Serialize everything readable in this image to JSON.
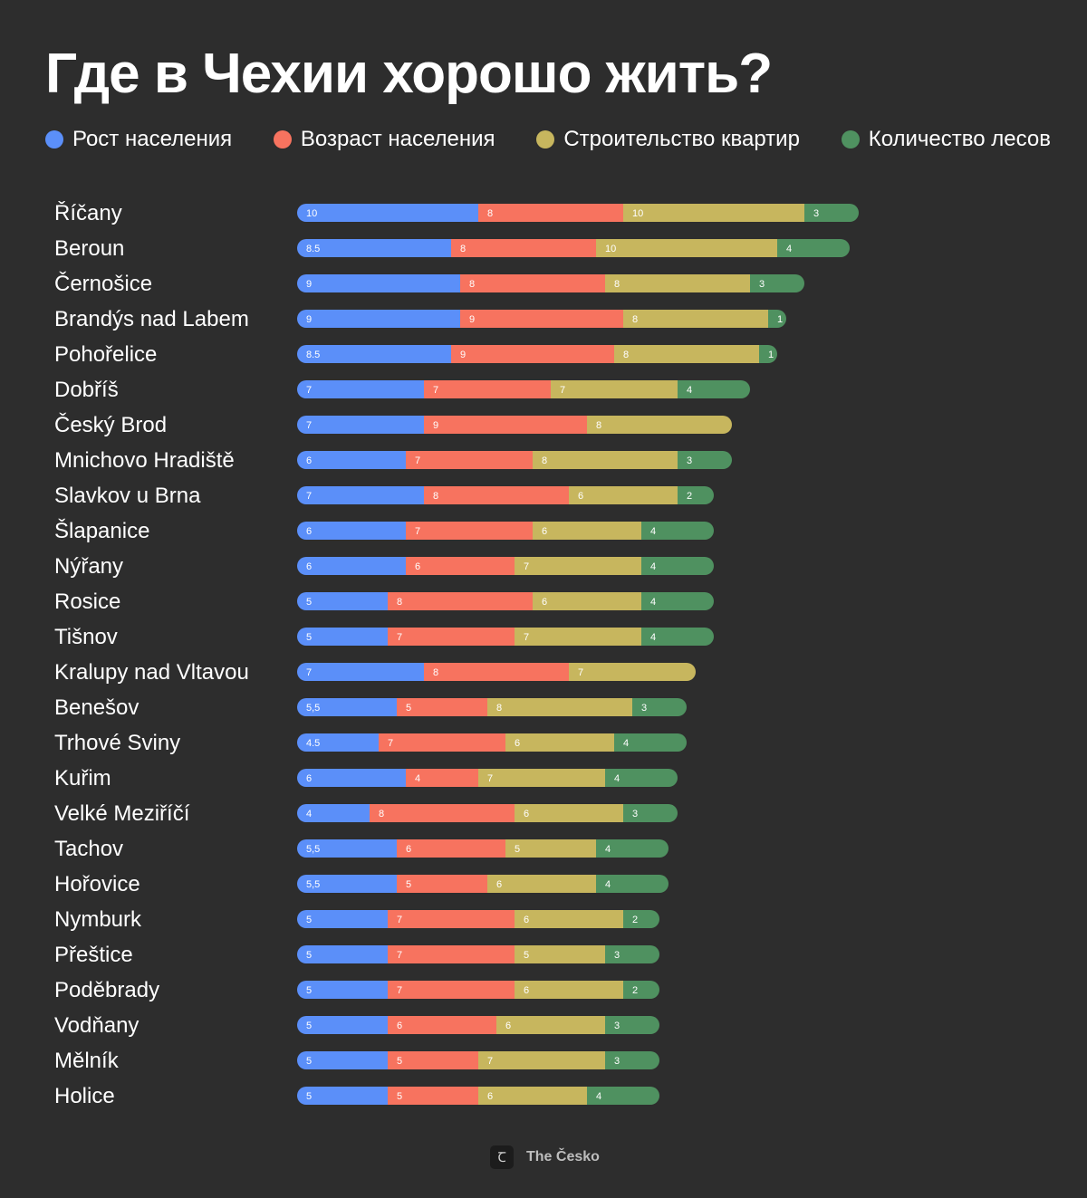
{
  "title": "Где в Чехии хорошо жить?",
  "colors": {
    "background": "#2d2d2d",
    "population_growth": "#5b8ff9",
    "population_age": "#f7735f",
    "housing_construction": "#c7b65e",
    "forests": "#4f9160"
  },
  "legend": [
    {
      "label": "Рост населения",
      "color": "#5b8ff9"
    },
    {
      "label": "Возраст населения",
      "color": "#f7735f"
    },
    {
      "label": "Строительство квартир",
      "color": "#c7b65e"
    },
    {
      "label": "Количество лесов",
      "color": "#4f9160"
    }
  ],
  "footer": {
    "logo_icon": "brand-c-icon",
    "logo_glyph": "Ꞇ",
    "brand": "The Česko"
  },
  "chart_data": {
    "type": "bar",
    "orientation": "horizontal",
    "stacked": true,
    "legend_position": "top",
    "categories": [
      "Říčany",
      "Beroun",
      "Černošice",
      "Brandýs nad Labem",
      "Pohořelice",
      "Dobříš",
      "Český Brod",
      "Mnichovo Hradiště",
      "Slavkov u Brna",
      "Šlapanice",
      "Nýřany",
      "Rosice",
      "Tišnov",
      "Kralupy nad Vltavou",
      "Benešov",
      "Trhové Sviny",
      "Kuřim",
      "Velké Meziříčí",
      "Tachov",
      "Hořovice",
      "Nymburk",
      "Přeštice",
      "Poděbrady",
      "Vodňany",
      "Mělník",
      "Holice"
    ],
    "series": [
      {
        "name": "Рост населения",
        "color": "#5b8ff9",
        "values": [
          10,
          8.5,
          9,
          9,
          8.5,
          7,
          7,
          6,
          7,
          6,
          6,
          5,
          5,
          7,
          5.5,
          4.5,
          6,
          4,
          5.5,
          5.5,
          5,
          5,
          5,
          5,
          5,
          5
        ],
        "labels": [
          "10",
          "8.5",
          "9",
          "9",
          "8.5",
          "7",
          "7",
          "6",
          "7",
          "6",
          "6",
          "5",
          "5",
          "7",
          "5,5",
          "4.5",
          "6",
          "4",
          "5,5",
          "5,5",
          "5",
          "5",
          "5",
          "5",
          "5",
          "5"
        ]
      },
      {
        "name": "Возраст населения",
        "color": "#f7735f",
        "values": [
          8,
          8,
          8,
          9,
          9,
          7,
          9,
          7,
          8,
          7,
          6,
          8,
          7,
          8,
          5,
          7,
          4,
          8,
          6,
          5,
          7,
          7,
          7,
          6,
          5,
          5
        ],
        "labels": [
          "8",
          "8",
          "8",
          "9",
          "9",
          "7",
          "9",
          "7",
          "8",
          "7",
          "6",
          "8",
          "7",
          "8",
          "5",
          "7",
          "4",
          "8",
          "6",
          "5",
          "7",
          "7",
          "7",
          "6",
          "5",
          "5"
        ]
      },
      {
        "name": "Строительство квартир",
        "color": "#c7b65e",
        "values": [
          10,
          10,
          8,
          8,
          8,
          7,
          8,
          8,
          6,
          6,
          7,
          6,
          7,
          7,
          8,
          6,
          7,
          6,
          5,
          6,
          6,
          5,
          6,
          6,
          7,
          6
        ],
        "labels": [
          "10",
          "10",
          "8",
          "8",
          "8",
          "7",
          "8",
          "8",
          "6",
          "6",
          "7",
          "6",
          "7",
          "7",
          "8",
          "6",
          "7",
          "6",
          "5",
          "6",
          "6",
          "5",
          "6",
          "6",
          "7",
          "6"
        ]
      },
      {
        "name": "Количество лесов",
        "color": "#4f9160",
        "values": [
          3,
          4,
          3,
          1,
          1,
          4,
          0,
          3,
          2,
          4,
          4,
          4,
          4,
          0,
          3,
          4,
          4,
          3,
          4,
          4,
          2,
          3,
          2,
          3,
          3,
          4
        ],
        "labels": [
          "3",
          "4",
          "3",
          "1",
          "1",
          "4",
          "",
          "3",
          "2",
          "4",
          "4",
          "4",
          "4",
          "",
          "3",
          "4",
          "4",
          "3",
          "4",
          "4",
          "2",
          "3",
          "2",
          "3",
          "3",
          "4"
        ]
      }
    ]
  }
}
